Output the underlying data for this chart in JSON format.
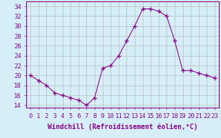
{
  "x": [
    0,
    1,
    2,
    3,
    4,
    5,
    6,
    7,
    8,
    9,
    10,
    11,
    12,
    13,
    14,
    15,
    16,
    17,
    18,
    19,
    20,
    21,
    22,
    23
  ],
  "y": [
    20,
    19,
    18,
    16.5,
    16,
    15.5,
    15,
    14,
    15.5,
    21.5,
    22,
    24,
    27,
    30,
    33.5,
    33.5,
    33,
    32,
    27,
    21,
    21,
    20.5,
    20,
    19.5
  ],
  "line_color": "#880088",
  "marker": "+",
  "marker_size": 4,
  "bg_color": "#d6eef8",
  "grid_color": "#bbbbbb",
  "xlabel": "Windchill (Refroidissement éolien,°C)",
  "xlabel_fontsize": 7,
  "yticks": [
    14,
    16,
    18,
    20,
    22,
    24,
    26,
    28,
    30,
    32,
    34
  ],
  "xticks": [
    0,
    1,
    2,
    3,
    4,
    5,
    6,
    7,
    8,
    9,
    10,
    11,
    12,
    13,
    14,
    15,
    16,
    17,
    18,
    19,
    20,
    21,
    22,
    23
  ],
  "ylim": [
    13.5,
    35.0
  ],
  "xlim": [
    -0.5,
    23.5
  ],
  "tick_fontsize": 6.5
}
